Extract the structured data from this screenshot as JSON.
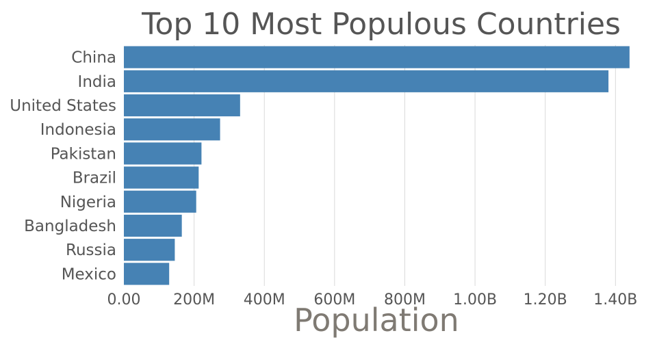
{
  "chart_data": {
    "type": "bar",
    "orientation": "horizontal",
    "title": "Top 10 Most Populous Countries",
    "xlabel": "Population",
    "ylabel": "",
    "categories": [
      "China",
      "India",
      "United States",
      "Indonesia",
      "Pakistan",
      "Brazil",
      "Nigeria",
      "Bangladesh",
      "Russia",
      "Mexico"
    ],
    "values": [
      1440000000,
      1380000000,
      331000000,
      274000000,
      221000000,
      213000000,
      206000000,
      165000000,
      145000000,
      129000000
    ],
    "xlim": [
      0,
      1450000000
    ],
    "x_ticks": [
      0,
      200000000,
      400000000,
      600000000,
      800000000,
      1000000000,
      1200000000,
      1400000000
    ],
    "x_tick_labels": [
      "0.00",
      "200M",
      "400M",
      "600M",
      "800M",
      "1.00B",
      "1.20B",
      "1.40B"
    ],
    "grid": "vertical",
    "bar_color": "#4682b4",
    "grid_color": "#d9d9d9",
    "text_color": "#555555"
  }
}
